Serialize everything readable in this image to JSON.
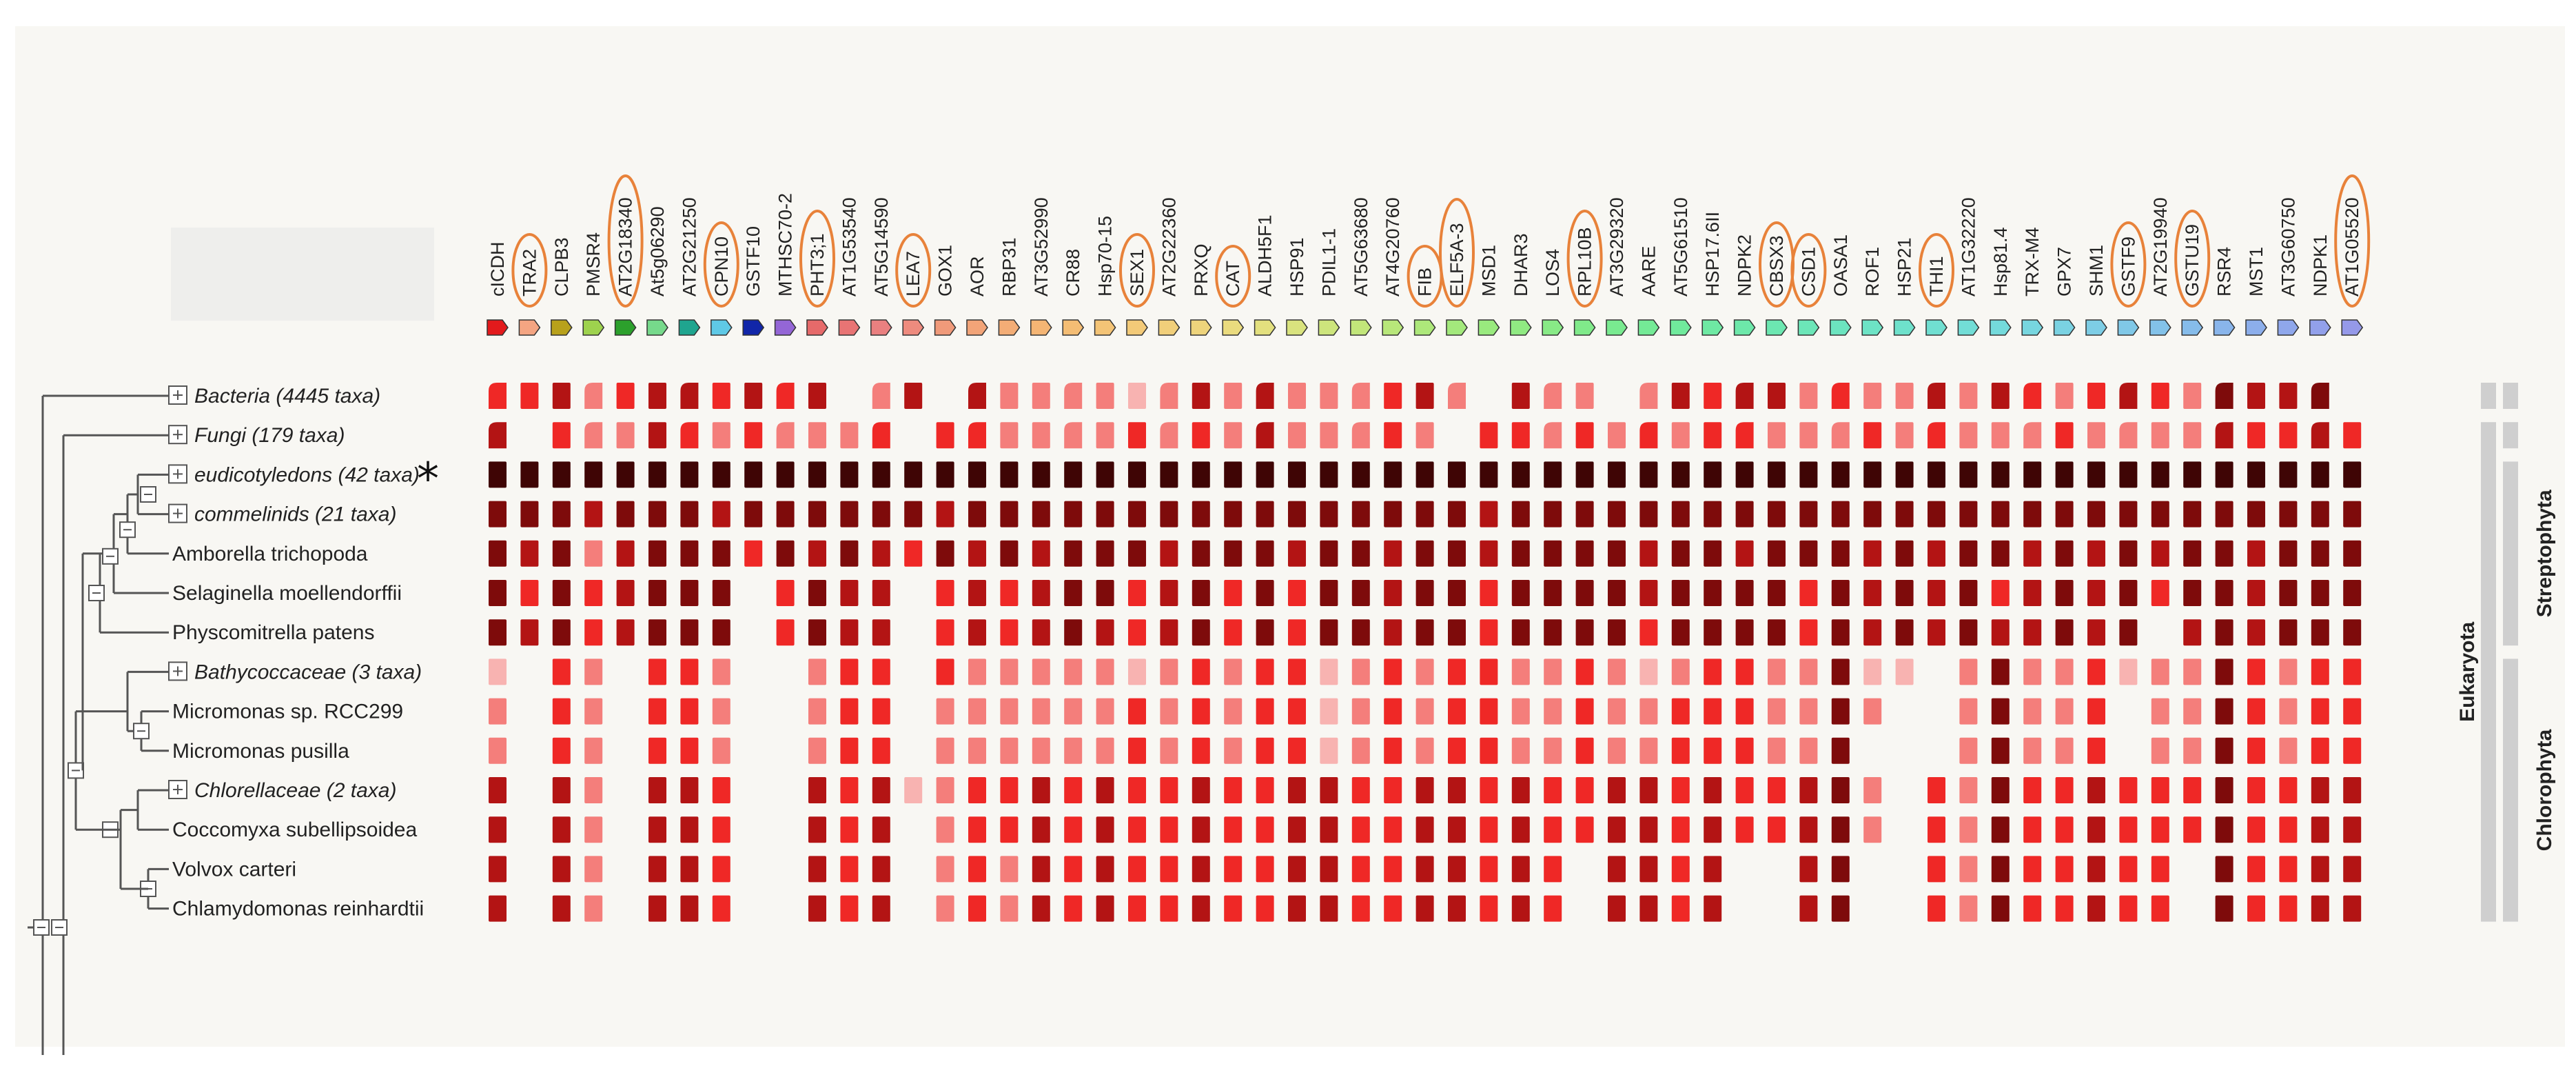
{
  "figure": {
    "marker": "*",
    "colors": {
      "background": "#ffffff",
      "panel": "#f8f7f3",
      "header_panel": "#eeeeec",
      "tree_line": "#555555",
      "circle": "#e8823a",
      "side_bar": "#cfcfcf",
      "shade_levels": [
        "#ffffff",
        "#fbdedd",
        "#f8b3b1",
        "#f47e7b",
        "#ef2826",
        "#b31414",
        "#7e0b0b",
        "#3f0505"
      ]
    },
    "genes": [
      {
        "name": "cICDH",
        "color": "#e31a1c",
        "circled": false
      },
      {
        "name": "TRA2",
        "color": "#f4a582",
        "circled": true
      },
      {
        "name": "CLPB3",
        "color": "#b8a11b",
        "circled": false
      },
      {
        "name": "PMSR4",
        "color": "#9ed24e",
        "circled": false
      },
      {
        "name": "AT2G18340",
        "color": "#2ca02c",
        "circled": true
      },
      {
        "name": "At5g06290",
        "color": "#76d98b",
        "circled": false
      },
      {
        "name": "AT2G21250",
        "color": "#1fa58f",
        "circled": false
      },
      {
        "name": "CPN10",
        "color": "#5fc9e6",
        "circled": true
      },
      {
        "name": "GSTF10",
        "color": "#1126a8",
        "circled": false
      },
      {
        "name": "MTHSC70-2",
        "color": "#9466d6",
        "circled": false
      },
      {
        "name": "PHT3;1",
        "color": "#e66a6a",
        "circled": true
      },
      {
        "name": "AT1G53540",
        "color": "#e87474",
        "circled": false
      },
      {
        "name": "AT5G14590",
        "color": "#ea8080",
        "circled": false
      },
      {
        "name": "LEA7",
        "color": "#ee8b7e",
        "circled": true
      },
      {
        "name": "GOX1",
        "color": "#f09a7a",
        "circled": false
      },
      {
        "name": "AOR",
        "color": "#f2a478",
        "circled": false
      },
      {
        "name": "RBP31",
        "color": "#f3ad76",
        "circled": false
      },
      {
        "name": "AT3G52990",
        "color": "#f4b574",
        "circled": false
      },
      {
        "name": "CR88",
        "color": "#f4bd74",
        "circled": false
      },
      {
        "name": "Hsp70-15",
        "color": "#f4c476",
        "circled": false
      },
      {
        "name": "SEX1",
        "color": "#f3ca78",
        "circled": true
      },
      {
        "name": "AT2G22360",
        "color": "#f1cf7a",
        "circled": false
      },
      {
        "name": "PRXQ",
        "color": "#eed47c",
        "circled": false
      },
      {
        "name": "CAT",
        "color": "#eadb7e",
        "circled": true
      },
      {
        "name": "ALDH5F1",
        "color": "#e3e07e",
        "circled": false
      },
      {
        "name": "HSP91",
        "color": "#d9e37e",
        "circled": false
      },
      {
        "name": "PDIL1-1",
        "color": "#cde57c",
        "circled": false
      },
      {
        "name": "AT5G63680",
        "color": "#c2e67a",
        "circled": false
      },
      {
        "name": "AT4G20760",
        "color": "#b8e77a",
        "circled": false
      },
      {
        "name": "FIB",
        "color": "#ade87a",
        "circled": true
      },
      {
        "name": "ELF5A-3",
        "color": "#a3e97c",
        "circled": true
      },
      {
        "name": "MSD1",
        "color": "#99ea7e",
        "circled": false
      },
      {
        "name": "DHAR3",
        "color": "#90ea82",
        "circled": false
      },
      {
        "name": "LOS4",
        "color": "#88ea86",
        "circled": false
      },
      {
        "name": "RPL10B",
        "color": "#80ea8a",
        "circled": true
      },
      {
        "name": "AT3G29320",
        "color": "#79ea90",
        "circled": false
      },
      {
        "name": "AARE",
        "color": "#74ea96",
        "circled": false
      },
      {
        "name": "AT5G61510",
        "color": "#70ea9c",
        "circled": false
      },
      {
        "name": "HSP17.6II",
        "color": "#6ee9a3",
        "circled": false
      },
      {
        "name": "NDPK2",
        "color": "#6de8aa",
        "circled": false
      },
      {
        "name": "CBSX3",
        "color": "#6ce7b1",
        "circled": true
      },
      {
        "name": "CSD1",
        "color": "#6ce6b8",
        "circled": true
      },
      {
        "name": "OASA1",
        "color": "#6ce4bf",
        "circled": false
      },
      {
        "name": "ROF1",
        "color": "#6de3c5",
        "circled": false
      },
      {
        "name": "HSP21",
        "color": "#6ee1cb",
        "circled": false
      },
      {
        "name": "THI1",
        "color": "#70dfd1",
        "circled": true
      },
      {
        "name": "AT1G32220",
        "color": "#72ddd6",
        "circled": false
      },
      {
        "name": "Hsp81.4",
        "color": "#74dadb",
        "circled": false
      },
      {
        "name": "TRX-M4",
        "color": "#77d6df",
        "circled": false
      },
      {
        "name": "GPX7",
        "color": "#7ad2e2",
        "circled": false
      },
      {
        "name": "SHM1",
        "color": "#7dcde5",
        "circled": false
      },
      {
        "name": "GSTF9",
        "color": "#80c8e7",
        "circled": true
      },
      {
        "name": "AT2G19940",
        "color": "#83c2e9",
        "circled": false
      },
      {
        "name": "GSTU19",
        "color": "#86bcea",
        "circled": true
      },
      {
        "name": "RSR4",
        "color": "#89b5eb",
        "circled": false
      },
      {
        "name": "MST1",
        "color": "#8caeeb",
        "circled": false
      },
      {
        "name": "AT3G60750",
        "color": "#8fa7eb",
        "circled": false
      },
      {
        "name": "NDPK1",
        "color": "#92a0ea",
        "circled": false
      },
      {
        "name": "AT1G05520",
        "color": "#9599e9",
        "circled": true
      }
    ],
    "taxa": [
      {
        "label": "Bacteria (4445 taxa)",
        "collapsed": true,
        "italic": true,
        "marked": false
      },
      {
        "label": "Fungi (179 taxa)",
        "collapsed": true,
        "italic": true,
        "marked": false
      },
      {
        "label": "eudicotyledons (42 taxa)",
        "collapsed": true,
        "italic": true,
        "marked": true
      },
      {
        "label": "commelinids (21 taxa)",
        "collapsed": true,
        "italic": true,
        "marked": false
      },
      {
        "label": "Amborella trichopoda",
        "collapsed": false,
        "italic": false,
        "marked": false
      },
      {
        "label": "Selaginella moellendorffii",
        "collapsed": false,
        "italic": false,
        "marked": false
      },
      {
        "label": "Physcomitrella patens",
        "collapsed": false,
        "italic": false,
        "marked": false
      },
      {
        "label": "Bathycoccaceae (3 taxa)",
        "collapsed": true,
        "italic": true,
        "marked": false
      },
      {
        "label": "Micromonas sp. RCC299",
        "collapsed": false,
        "italic": false,
        "marked": false
      },
      {
        "label": "Micromonas pusilla",
        "collapsed": false,
        "italic": false,
        "marked": false
      },
      {
        "label": "Chlorellaceae (2 taxa)",
        "collapsed": true,
        "italic": true,
        "marked": false
      },
      {
        "label": "Coccomyxa subellipsoidea",
        "collapsed": false,
        "italic": false,
        "marked": false
      },
      {
        "label": "Volvox carteri",
        "collapsed": false,
        "italic": false,
        "marked": false
      },
      {
        "label": "Chlamydomonas reinhardtii",
        "collapsed": false,
        "italic": false,
        "marked": false
      }
    ],
    "groups": [
      {
        "label": "Streptophyta",
        "rows": [
          2,
          6
        ]
      },
      {
        "label": "Chlorophyta",
        "rows": [
          7,
          13
        ]
      },
      {
        "label": "Eukaryota",
        "rows": [
          1,
          13
        ]
      }
    ],
    "matrix_note": "Shade level per cell: 0 = absent, 1-7 = increasing conservation intensity. Rows follow taxa order, columns follow genes order.",
    "matrix": [
      [
        4,
        4,
        5,
        3,
        4,
        5,
        5,
        4,
        5,
        4,
        5,
        0,
        3,
        5,
        0,
        5,
        3,
        3,
        3,
        3,
        2,
        3,
        5,
        3,
        5,
        3,
        3,
        3,
        4,
        5,
        3,
        0,
        5,
        3,
        3,
        0,
        3,
        5,
        4,
        5,
        5,
        3,
        4,
        3,
        3,
        5,
        3,
        5,
        4,
        3,
        4,
        5,
        4,
        3,
        6,
        5,
        5,
        6,
        0
      ],
      [
        5,
        0,
        4,
        3,
        3,
        5,
        4,
        3,
        4,
        3,
        3,
        3,
        4,
        0,
        4,
        4,
        3,
        3,
        3,
        3,
        4,
        3,
        4,
        3,
        5,
        3,
        3,
        3,
        4,
        3,
        0,
        4,
        4,
        3,
        4,
        3,
        4,
        3,
        4,
        4,
        3,
        3,
        3,
        4,
        3,
        4,
        3,
        3,
        3,
        4,
        3,
        3,
        3,
        3,
        5,
        4,
        4,
        5,
        4
      ],
      [
        7,
        7,
        7,
        7,
        7,
        7,
        7,
        7,
        7,
        7,
        7,
        7,
        7,
        7,
        7,
        7,
        7,
        7,
        7,
        7,
        7,
        7,
        7,
        7,
        7,
        7,
        7,
        7,
        7,
        7,
        7,
        7,
        7,
        7,
        7,
        7,
        7,
        7,
        7,
        7,
        7,
        7,
        7,
        7,
        7,
        7,
        7,
        7,
        7,
        7,
        7,
        7,
        7,
        7,
        7,
        7,
        7,
        7,
        7
      ],
      [
        6,
        6,
        6,
        5,
        6,
        6,
        6,
        5,
        6,
        6,
        6,
        6,
        6,
        6,
        5,
        6,
        6,
        6,
        6,
        6,
        6,
        6,
        6,
        6,
        6,
        6,
        6,
        6,
        6,
        6,
        6,
        5,
        6,
        6,
        6,
        6,
        6,
        6,
        6,
        6,
        6,
        6,
        6,
        6,
        6,
        6,
        6,
        6,
        6,
        6,
        6,
        6,
        6,
        6,
        6,
        6,
        6,
        6,
        6
      ],
      [
        6,
        5,
        6,
        3,
        5,
        6,
        6,
        6,
        4,
        6,
        5,
        6,
        5,
        4,
        6,
        5,
        6,
        5,
        6,
        6,
        6,
        5,
        6,
        6,
        6,
        5,
        6,
        6,
        5,
        6,
        6,
        5,
        6,
        6,
        6,
        6,
        5,
        6,
        6,
        5,
        6,
        6,
        6,
        5,
        6,
        5,
        6,
        6,
        5,
        6,
        5,
        6,
        5,
        6,
        6,
        5,
        6,
        6,
        6
      ],
      [
        6,
        4,
        6,
        4,
        5,
        6,
        6,
        6,
        0,
        4,
        6,
        5,
        5,
        0,
        4,
        5,
        4,
        5,
        6,
        6,
        4,
        5,
        6,
        4,
        6,
        4,
        6,
        6,
        5,
        6,
        6,
        4,
        6,
        6,
        6,
        6,
        5,
        6,
        6,
        6,
        6,
        4,
        6,
        5,
        6,
        5,
        6,
        4,
        5,
        6,
        5,
        6,
        4,
        6,
        6,
        5,
        6,
        6,
        6
      ],
      [
        6,
        5,
        6,
        4,
        5,
        6,
        6,
        6,
        0,
        4,
        6,
        5,
        5,
        0,
        4,
        5,
        4,
        5,
        6,
        5,
        4,
        5,
        6,
        4,
        6,
        4,
        6,
        6,
        5,
        6,
        6,
        4,
        6,
        6,
        6,
        6,
        4,
        6,
        6,
        6,
        6,
        4,
        6,
        5,
        6,
        5,
        6,
        5,
        5,
        6,
        5,
        6,
        0,
        5,
        6,
        5,
        6,
        6,
        6
      ],
      [
        2,
        0,
        4,
        3,
        0,
        4,
        4,
        3,
        0,
        0,
        3,
        4,
        4,
        0,
        4,
        3,
        3,
        3,
        3,
        3,
        2,
        3,
        4,
        3,
        4,
        4,
        2,
        3,
        4,
        3,
        4,
        4,
        3,
        3,
        4,
        3,
        2,
        3,
        4,
        4,
        3,
        3,
        6,
        2,
        2,
        0,
        3,
        6,
        3,
        3,
        4,
        2,
        3,
        3,
        6,
        4,
        3,
        4,
        4
      ],
      [
        3,
        0,
        4,
        3,
        0,
        4,
        4,
        3,
        0,
        0,
        3,
        4,
        4,
        0,
        3,
        3,
        3,
        3,
        3,
        3,
        4,
        3,
        4,
        3,
        4,
        4,
        2,
        3,
        4,
        3,
        4,
        4,
        3,
        3,
        4,
        3,
        3,
        4,
        4,
        4,
        3,
        3,
        6,
        3,
        0,
        0,
        3,
        6,
        3,
        3,
        4,
        0,
        3,
        3,
        6,
        4,
        3,
        4,
        4
      ],
      [
        3,
        0,
        4,
        3,
        0,
        4,
        4,
        3,
        0,
        0,
        3,
        4,
        4,
        0,
        3,
        3,
        3,
        3,
        3,
        3,
        4,
        3,
        4,
        3,
        4,
        4,
        2,
        3,
        4,
        3,
        4,
        4,
        3,
        3,
        4,
        3,
        3,
        4,
        4,
        4,
        3,
        3,
        6,
        0,
        0,
        0,
        3,
        6,
        3,
        3,
        4,
        0,
        3,
        3,
        6,
        4,
        3,
        4,
        4
      ],
      [
        5,
        0,
        5,
        3,
        0,
        5,
        5,
        4,
        0,
        0,
        5,
        4,
        5,
        2,
        3,
        4,
        4,
        5,
        4,
        5,
        4,
        4,
        5,
        4,
        4,
        5,
        5,
        4,
        4,
        5,
        5,
        4,
        5,
        4,
        4,
        5,
        5,
        4,
        5,
        4,
        4,
        5,
        6,
        3,
        0,
        4,
        3,
        6,
        4,
        4,
        5,
        4,
        4,
        4,
        6,
        4,
        4,
        5,
        5
      ],
      [
        5,
        0,
        5,
        3,
        0,
        5,
        5,
        4,
        0,
        0,
        5,
        4,
        5,
        0,
        3,
        4,
        4,
        5,
        4,
        5,
        4,
        4,
        5,
        4,
        4,
        5,
        5,
        4,
        4,
        5,
        5,
        4,
        5,
        4,
        4,
        5,
        5,
        4,
        5,
        4,
        4,
        5,
        6,
        3,
        0,
        4,
        3,
        6,
        4,
        4,
        5,
        4,
        4,
        4,
        6,
        4,
        4,
        5,
        5
      ],
      [
        5,
        0,
        5,
        3,
        0,
        5,
        5,
        4,
        0,
        0,
        5,
        4,
        5,
        0,
        3,
        4,
        3,
        5,
        4,
        5,
        4,
        4,
        5,
        4,
        4,
        5,
        5,
        4,
        4,
        5,
        5,
        4,
        5,
        4,
        0,
        5,
        5,
        4,
        5,
        0,
        0,
        5,
        6,
        0,
        0,
        4,
        3,
        6,
        4,
        4,
        5,
        4,
        4,
        0,
        6,
        4,
        4,
        5,
        5
      ],
      [
        5,
        0,
        5,
        3,
        0,
        5,
        5,
        4,
        0,
        0,
        5,
        4,
        5,
        0,
        3,
        4,
        3,
        5,
        4,
        5,
        4,
        4,
        5,
        4,
        4,
        5,
        5,
        4,
        4,
        5,
        5,
        4,
        5,
        4,
        0,
        5,
        5,
        4,
        5,
        0,
        0,
        5,
        6,
        0,
        0,
        4,
        3,
        6,
        4,
        4,
        5,
        4,
        4,
        0,
        6,
        4,
        4,
        5,
        5
      ]
    ]
  }
}
